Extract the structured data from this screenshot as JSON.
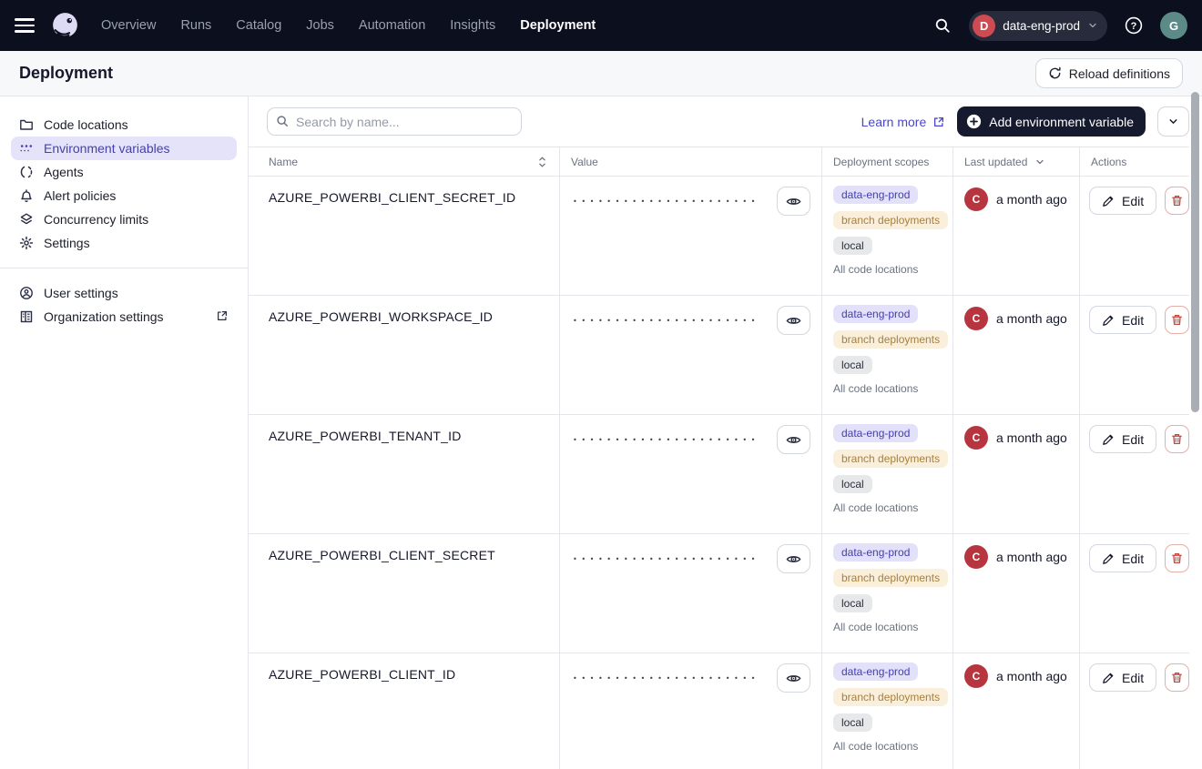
{
  "topbar": {
    "nav": [
      "Overview",
      "Runs",
      "Catalog",
      "Jobs",
      "Automation",
      "Insights",
      "Deployment"
    ],
    "active_nav": "Deployment",
    "org": {
      "initial": "D",
      "name": "data-eng-prod"
    },
    "user_initial": "G"
  },
  "header": {
    "title": "Deployment",
    "reload_label": "Reload definitions"
  },
  "sidebar": {
    "items": [
      "Code locations",
      "Environment variables",
      "Agents",
      "Alert policies",
      "Concurrency limits",
      "Settings"
    ],
    "active_item": "Environment variables",
    "footer_items": [
      "User settings",
      "Organization settings"
    ]
  },
  "toolbar": {
    "search_placeholder": "Search by name...",
    "learn_more_label": "Learn more",
    "add_button_label": "Add environment variable"
  },
  "table": {
    "columns": [
      "Name",
      "Value",
      "Deployment scopes",
      "Last updated",
      "Actions"
    ],
    "masked_value": "••••••••••••••••••••••",
    "rows": [
      {
        "name": "AZURE_POWERBI_CLIENT_SECRET_ID",
        "scopes": [
          {
            "label": "data-eng-prod",
            "type": "prod"
          },
          {
            "label": "branch deployments",
            "type": "branch"
          },
          {
            "label": "local",
            "type": "local"
          }
        ],
        "code_locations": "All code locations",
        "updated_by_initial": "C",
        "updated": "a month ago",
        "edit_label": "Edit"
      },
      {
        "name": "AZURE_POWERBI_WORKSPACE_ID",
        "scopes": [
          {
            "label": "data-eng-prod",
            "type": "prod"
          },
          {
            "label": "branch deployments",
            "type": "branch"
          },
          {
            "label": "local",
            "type": "local"
          }
        ],
        "code_locations": "All code locations",
        "updated_by_initial": "C",
        "updated": "a month ago",
        "edit_label": "Edit"
      },
      {
        "name": "AZURE_POWERBI_TENANT_ID",
        "scopes": [
          {
            "label": "data-eng-prod",
            "type": "prod"
          },
          {
            "label": "branch deployments",
            "type": "branch"
          },
          {
            "label": "local",
            "type": "local"
          }
        ],
        "code_locations": "All code locations",
        "updated_by_initial": "C",
        "updated": "a month ago",
        "edit_label": "Edit"
      },
      {
        "name": "AZURE_POWERBI_CLIENT_SECRET",
        "scopes": [
          {
            "label": "data-eng-prod",
            "type": "prod"
          },
          {
            "label": "branch deployments",
            "type": "branch"
          },
          {
            "label": "local",
            "type": "local"
          }
        ],
        "code_locations": "All code locations",
        "updated_by_initial": "C",
        "updated": "a month ago",
        "edit_label": "Edit"
      },
      {
        "name": "AZURE_POWERBI_CLIENT_ID",
        "scopes": [
          {
            "label": "data-eng-prod",
            "type": "prod"
          },
          {
            "label": "branch deployments",
            "type": "branch"
          },
          {
            "label": "local",
            "type": "local"
          }
        ],
        "code_locations": "All code locations",
        "updated_by_initial": "C",
        "updated": "a month ago",
        "edit_label": "Edit"
      }
    ]
  },
  "colors": {
    "topbar_bg": "#0C0F1E",
    "accent_indigo": "#4A46CB",
    "selected_nav_bg": "#E5E3F9",
    "selected_nav_text": "#4440B3",
    "badge_prod_bg": "#E3E1FA",
    "badge_prod_text": "#433EB0",
    "badge_branch_bg": "#FAEFDB",
    "badge_branch_text": "#A6803F",
    "badge_local_bg": "#E7E8EA",
    "badge_local_text": "#2B2E3B",
    "org_avatar": "#CE4B52",
    "row_avatar": "#B7353F",
    "user_avatar": "#5C8A87",
    "delete_red": "#C2473C",
    "add_button_bg": "#151A2F"
  },
  "icons": [
    "menu-icon",
    "dagster-logo",
    "search-icon",
    "chevron-down-icon",
    "help-icon",
    "folder-icon",
    "env-vars-icon",
    "agents-icon",
    "bell-icon",
    "layers-icon",
    "gear-icon",
    "user-circle-icon",
    "building-icon",
    "external-link-icon",
    "reload-icon",
    "plus-circle-icon",
    "sort-icon",
    "eye-icon",
    "pencil-icon",
    "trash-icon"
  ]
}
